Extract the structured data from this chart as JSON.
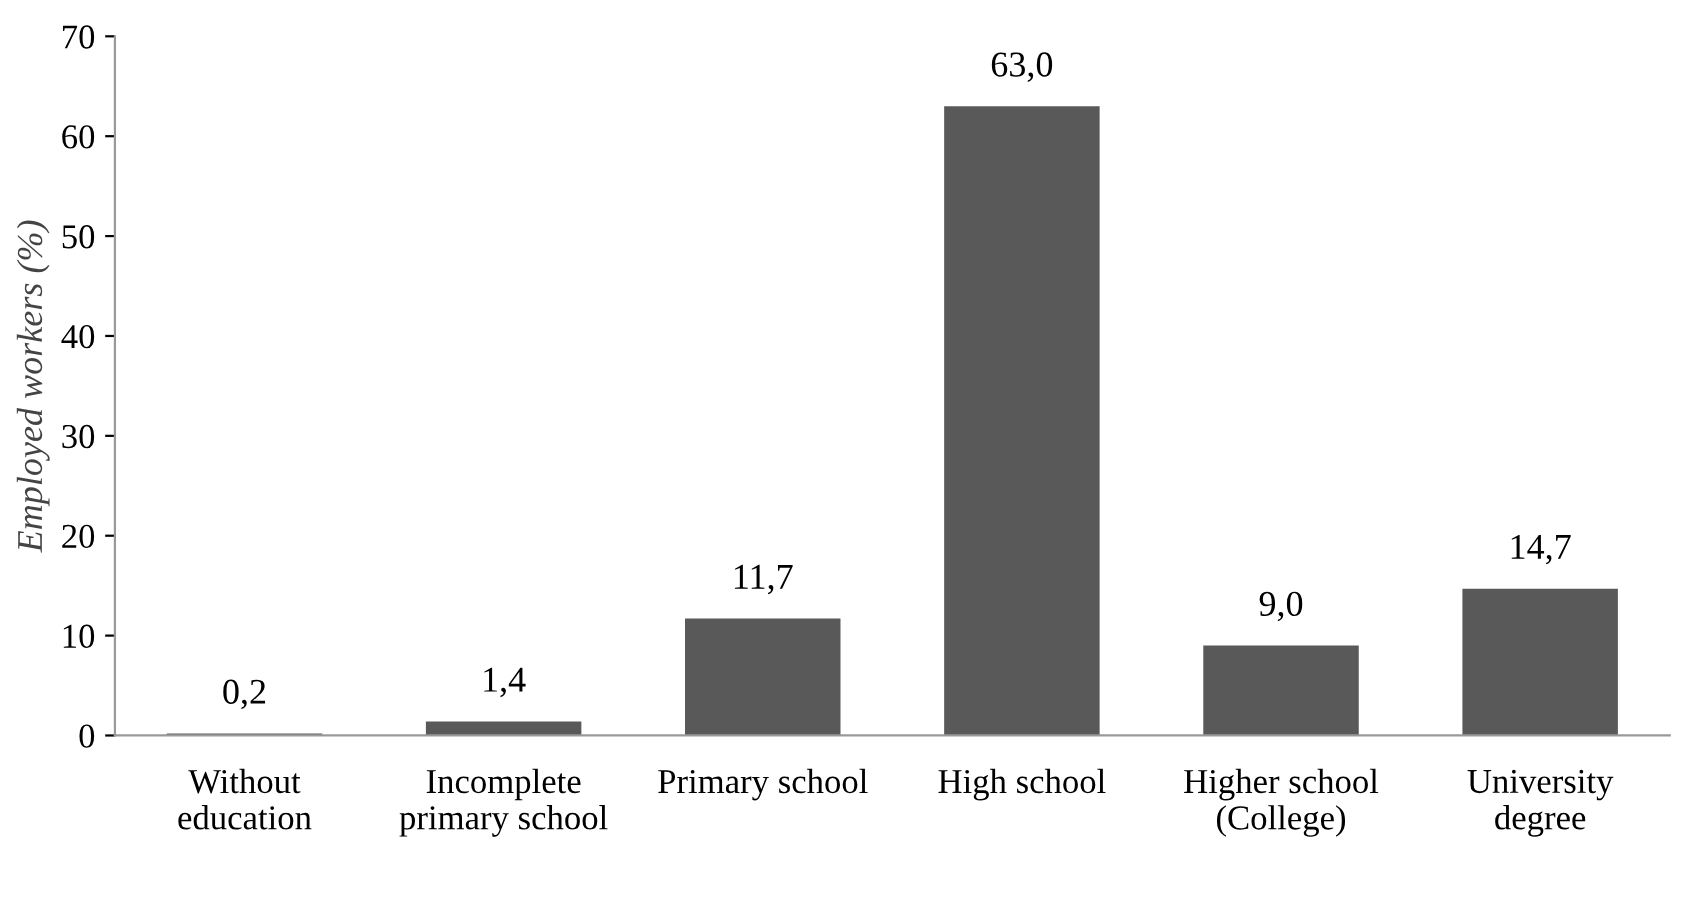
{
  "chart_data": {
    "type": "bar",
    "categories": [
      "Without\neducation",
      "Incomplete\nprimary school",
      "Primary school",
      "High school",
      "Higher school\n(College)",
      "University\ndegree"
    ],
    "values": [
      0.2,
      1.4,
      11.7,
      63.0,
      9.0,
      14.7
    ],
    "value_labels": [
      "0,2",
      "1,4",
      "11,7",
      "63,0",
      "9,0",
      "14,7"
    ],
    "color": "#595959",
    "ylabel": "Employed workers (%)",
    "ylim": [
      0,
      70
    ],
    "yticks": [
      0,
      10,
      20,
      30,
      40,
      50,
      60,
      70
    ],
    "grid": false
  }
}
